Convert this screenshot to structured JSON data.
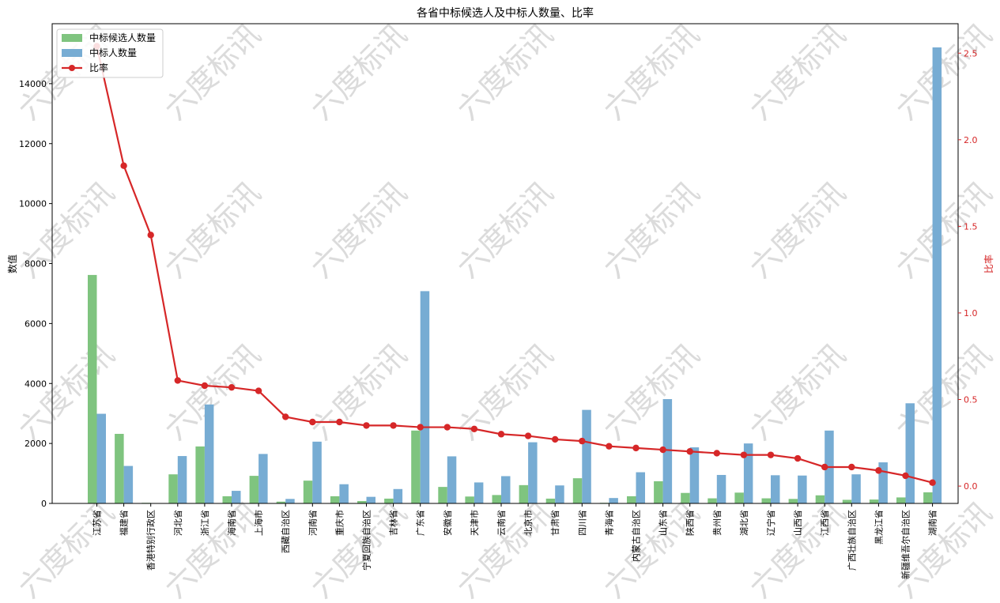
{
  "chart_data": {
    "type": "bar",
    "title": "各省中标候选人及中标人数量、比率",
    "ylabel": "数值",
    "y2label": "比率",
    "ylim": [
      0,
      16000
    ],
    "y2lim": [
      -0.1,
      2.67
    ],
    "yticks": [
      0,
      2000,
      4000,
      6000,
      8000,
      10000,
      12000,
      14000
    ],
    "y2ticks": [
      0.0,
      0.5,
      1.0,
      1.5,
      2.0,
      2.5
    ],
    "legend_position": "top-left",
    "grid": false,
    "categories": [
      "江苏省",
      "福建省",
      "香港特别行政区",
      "河北省",
      "浙江省",
      "海南省",
      "上海市",
      "西藏自治区",
      "河南省",
      "重庆市",
      "宁夏回族自治区",
      "吉林省",
      "广东省",
      "安徽省",
      "天津市",
      "云南省",
      "北京市",
      "甘肃省",
      "四川省",
      "青海省",
      "内蒙古自治区",
      "山东省",
      "陕西省",
      "贵州省",
      "湖北省",
      "辽宁省",
      "山西省",
      "江西省",
      "广西壮族自治区",
      "黑龙江省",
      "新疆维吾尔自治区",
      "湖南省"
    ],
    "series": [
      {
        "name": "中标候选人数量",
        "type": "bar",
        "axis": "left",
        "color": "#7fc47f",
        "values": [
          7620,
          2320,
          20,
          970,
          1900,
          240,
          920,
          60,
          760,
          240,
          80,
          160,
          2430,
          550,
          230,
          280,
          610,
          160,
          840,
          20,
          240,
          740,
          350,
          170,
          360,
          170,
          150,
          270,
          120,
          130,
          200,
          370
        ]
      },
      {
        "name": "中标人数量",
        "type": "bar",
        "axis": "left",
        "color": "#77acd3",
        "values": [
          2990,
          1250,
          10,
          1580,
          3300,
          420,
          1650,
          150,
          2060,
          640,
          220,
          480,
          7080,
          1570,
          700,
          910,
          2040,
          600,
          3120,
          180,
          1040,
          3480,
          1870,
          950,
          2000,
          940,
          930,
          2430,
          970,
          1370,
          3340,
          15210
        ]
      },
      {
        "name": "比率",
        "type": "line",
        "axis": "right",
        "color": "#d62728",
        "values": [
          2.54,
          1.85,
          1.45,
          0.61,
          0.58,
          0.57,
          0.55,
          0.4,
          0.37,
          0.37,
          0.35,
          0.35,
          0.34,
          0.34,
          0.33,
          0.3,
          0.29,
          0.27,
          0.26,
          0.23,
          0.22,
          0.21,
          0.2,
          0.19,
          0.18,
          0.18,
          0.16,
          0.11,
          0.11,
          0.09,
          0.06,
          0.02
        ]
      }
    ],
    "watermark": "六度标讯"
  }
}
